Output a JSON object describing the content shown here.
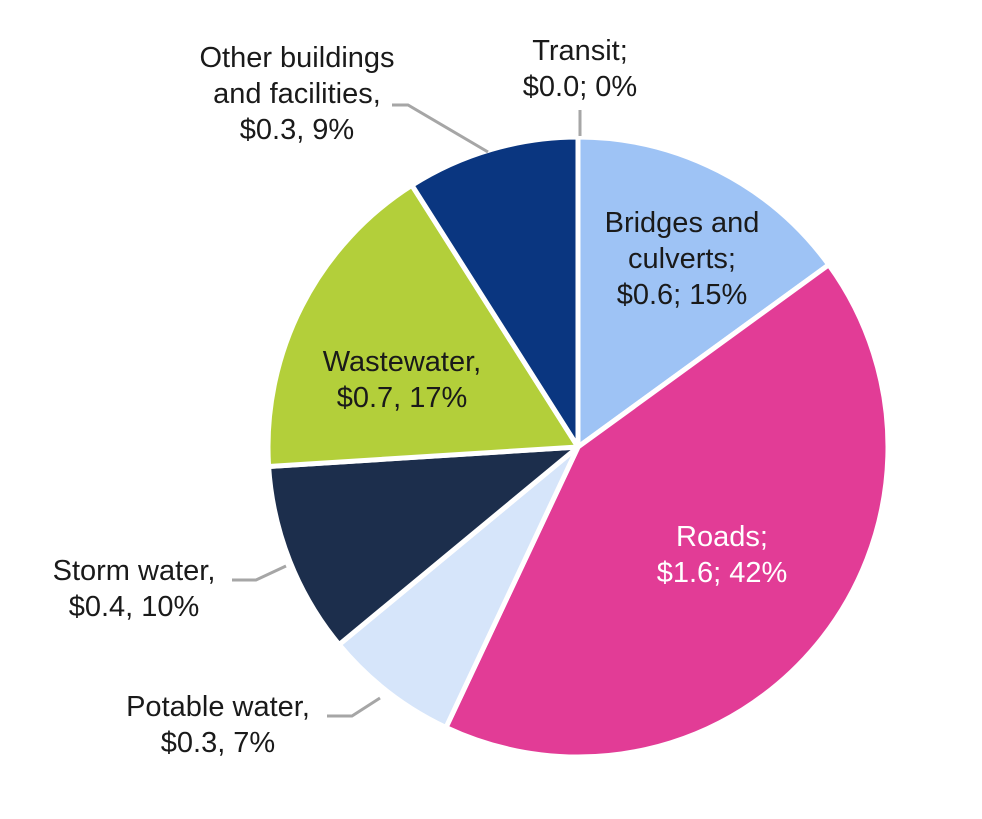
{
  "chart_data": {
    "type": "pie",
    "title": "",
    "slices": [
      {
        "name": "Transit",
        "value": 0.0,
        "percent": 0,
        "color": "#9ec3f5",
        "label": [
          "Transit;",
          "$0.0; 0%"
        ]
      },
      {
        "name": "Bridges and culverts",
        "value": 0.6,
        "percent": 15,
        "color": "#9ec3f5",
        "label": [
          "Bridges and",
          "culverts;",
          "$0.6; 15%"
        ]
      },
      {
        "name": "Roads",
        "value": 1.6,
        "percent": 42,
        "color": "#e23c96",
        "label": [
          "Roads;",
          "$1.6; 42%"
        ]
      },
      {
        "name": "Potable water",
        "value": 0.3,
        "percent": 7,
        "color": "#d6e5fa",
        "label": [
          "Potable water,",
          "$0.3, 7%"
        ]
      },
      {
        "name": "Storm water",
        "value": 0.4,
        "percent": 10,
        "color": "#1c2e4c",
        "label": [
          "Storm water,",
          "$0.4, 10%"
        ]
      },
      {
        "name": "Wastewater",
        "value": 0.7,
        "percent": 17,
        "color": "#b3cf3a",
        "label": [
          "Wastewater,",
          "$0.7, 17%"
        ]
      },
      {
        "name": "Other buildings and facilities",
        "value": 0.3,
        "percent": 9,
        "color": "#0a3680",
        "label": [
          "Other buildings",
          "and facilities,",
          "$0.3, 9%"
        ]
      }
    ],
    "start_angle_deg": 0,
    "direction": "clockwise",
    "legend": "none"
  }
}
